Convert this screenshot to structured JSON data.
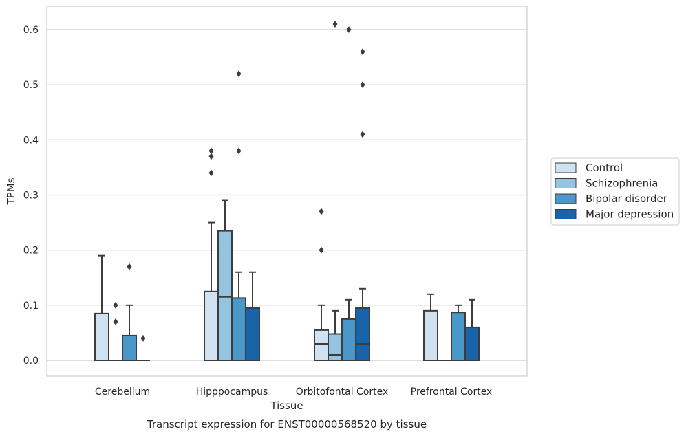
{
  "chart_data": {
    "type": "box",
    "title": "",
    "caption": "Transcript expression for ENST00000568520 by tissue",
    "xlabel": "Tissue",
    "ylabel": "TPMs",
    "ylim": [
      -0.03,
      0.643
    ],
    "yticks": [
      0.0,
      0.1,
      0.2,
      0.3,
      0.4,
      0.5,
      0.6
    ],
    "ytick_labels": [
      "0.0",
      "0.1",
      "0.2",
      "0.3",
      "0.4",
      "0.5",
      "0.6"
    ],
    "grid": "horizontal",
    "legend_position": "right",
    "categories": [
      "Cerebellum",
      "Hipppocampus",
      "Orbitofontal Cortex",
      "Prefrontal Cortex"
    ],
    "series": [
      {
        "name": "Control",
        "color": "#d0e1f2",
        "boxes": [
          {
            "q1": 0.0,
            "median": 0.0,
            "q3": 0.085,
            "whisker_low": 0.0,
            "whisker_high": 0.19,
            "outliers": []
          },
          {
            "q1": 0.0,
            "median": 0.0,
            "q3": 0.125,
            "whisker_low": 0.0,
            "whisker_high": 0.25,
            "outliers": [
              0.34,
              0.37,
              0.38
            ]
          },
          {
            "q1": 0.0,
            "median": 0.03,
            "q3": 0.055,
            "whisker_low": 0.0,
            "whisker_high": 0.1,
            "outliers": [
              0.2,
              0.27
            ]
          },
          {
            "q1": 0.0,
            "median": 0.0,
            "q3": 0.09,
            "whisker_low": 0.0,
            "whisker_high": 0.12,
            "outliers": []
          }
        ]
      },
      {
        "name": "Schizophrenia",
        "color": "#94c4df",
        "boxes": [
          {
            "q1": 0.0,
            "median": 0.0,
            "q3": 0.0,
            "whisker_low": 0.0,
            "whisker_high": 0.0,
            "outliers": [
              0.07,
              0.1
            ]
          },
          {
            "q1": 0.0,
            "median": 0.115,
            "q3": 0.235,
            "whisker_low": 0.0,
            "whisker_high": 0.29,
            "outliers": []
          },
          {
            "q1": 0.0,
            "median": 0.01,
            "q3": 0.048,
            "whisker_low": 0.0,
            "whisker_high": 0.09,
            "outliers": [
              0.61
            ]
          },
          {
            "q1": 0.0,
            "median": 0.0,
            "q3": 0.0,
            "whisker_low": 0.0,
            "whisker_high": 0.0,
            "outliers": []
          }
        ]
      },
      {
        "name": "Bipolar disorder",
        "color": "#4a98c9",
        "boxes": [
          {
            "q1": 0.0,
            "median": 0.0,
            "q3": 0.045,
            "whisker_low": 0.0,
            "whisker_high": 0.1,
            "outliers": [
              0.17
            ]
          },
          {
            "q1": 0.0,
            "median": 0.0,
            "q3": 0.113,
            "whisker_low": 0.0,
            "whisker_high": 0.16,
            "outliers": [
              0.38,
              0.52
            ]
          },
          {
            "q1": 0.0,
            "median": 0.0,
            "q3": 0.075,
            "whisker_low": 0.0,
            "whisker_high": 0.11,
            "outliers": [
              0.6
            ]
          },
          {
            "q1": 0.0,
            "median": 0.0,
            "q3": 0.087,
            "whisker_low": 0.0,
            "whisker_high": 0.1,
            "outliers": []
          }
        ]
      },
      {
        "name": "Major depression",
        "color": "#1764ab",
        "boxes": [
          {
            "q1": 0.0,
            "median": 0.0,
            "q3": 0.0,
            "whisker_low": 0.0,
            "whisker_high": 0.0,
            "outliers": [
              0.04
            ]
          },
          {
            "q1": 0.0,
            "median": 0.0,
            "q3": 0.095,
            "whisker_low": 0.0,
            "whisker_high": 0.16,
            "outliers": []
          },
          {
            "q1": 0.0,
            "median": 0.03,
            "q3": 0.095,
            "whisker_low": 0.0,
            "whisker_high": 0.13,
            "outliers": [
              0.41,
              0.5,
              0.56
            ]
          },
          {
            "q1": 0.0,
            "median": 0.0,
            "q3": 0.06,
            "whisker_low": 0.0,
            "whisker_high": 0.11,
            "outliers": []
          }
        ]
      }
    ]
  }
}
